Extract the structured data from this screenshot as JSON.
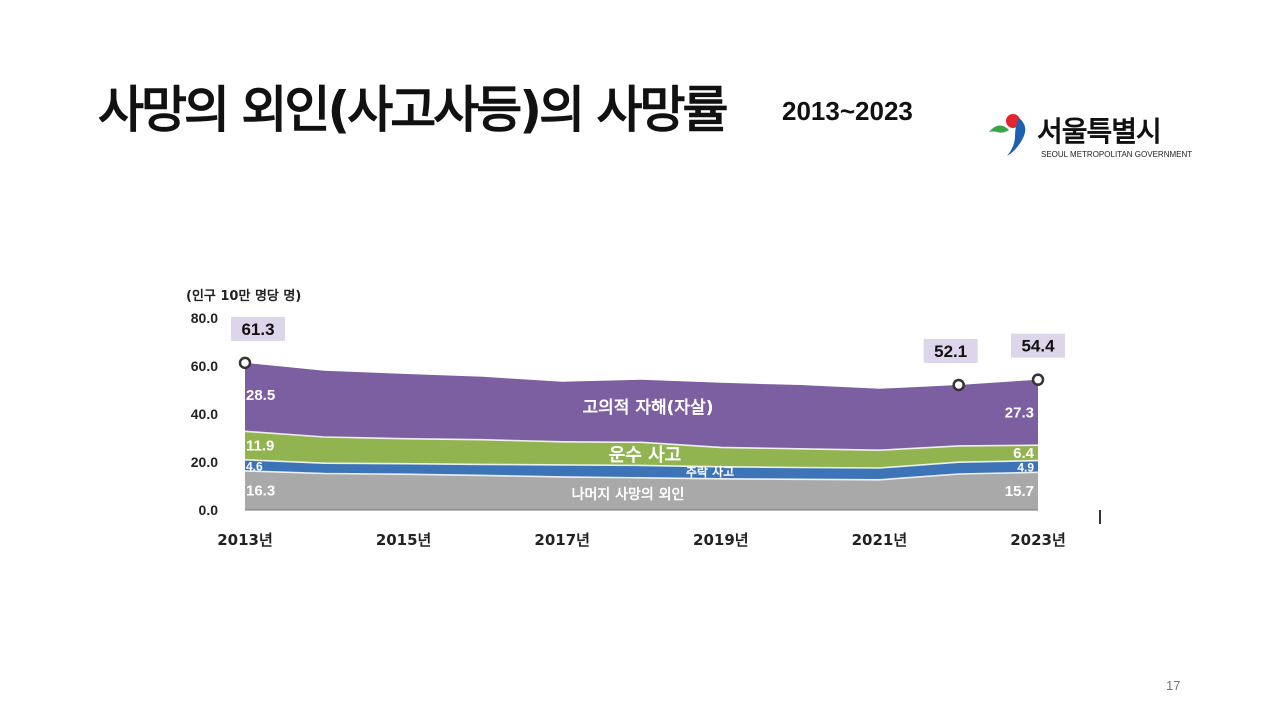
{
  "slide": {
    "title": "사망의 외인(사고사등)의 사망률",
    "subtitle": "2013~2023",
    "page_number": "17"
  },
  "logo": {
    "name": "서울특별시",
    "sub": "SEOUL METROPOLITAN GOVERNMENT"
  },
  "colors": {
    "self_harm": "#7b5fa0",
    "transport": "#92b450",
    "fall": "#3d74b8",
    "other": "#a9a9a9",
    "label_box": "#ddd5ea"
  },
  "chart_data": {
    "type": "area",
    "stacked": true,
    "unit_label": "(인구 10만 명당 명)",
    "ylim": [
      0,
      80
    ],
    "yticks": [
      "0.0",
      "20.0",
      "40.0",
      "60.0",
      "80.0"
    ],
    "x": [
      2013,
      2014,
      2015,
      2016,
      2017,
      2018,
      2019,
      2020,
      2021,
      2022,
      2023
    ],
    "xtick_labels": [
      "2013년",
      "2015년",
      "2017년",
      "2019년",
      "2021년",
      "2023년"
    ],
    "series": [
      {
        "name": "나머지 사망의 외인",
        "values": [
          16.3,
          15.2,
          14.9,
          14.4,
          13.8,
          13.4,
          13.0,
          12.8,
          12.6,
          15.0,
          15.7
        ]
      },
      {
        "name": "추락 사고",
        "values": [
          4.6,
          4.3,
          4.4,
          4.6,
          5.0,
          5.2,
          5.0,
          4.9,
          4.9,
          4.9,
          4.9
        ]
      },
      {
        "name": "운수 사고",
        "values": [
          11.9,
          10.9,
          10.4,
          10.3,
          9.6,
          9.6,
          8.1,
          7.8,
          7.4,
          6.8,
          6.4
        ]
      },
      {
        "name": "고의적 자해(자살)",
        "values": [
          28.5,
          27.6,
          27.0,
          26.2,
          25.0,
          26.1,
          26.9,
          26.6,
          25.6,
          25.4,
          27.3
        ]
      }
    ],
    "totals": {
      "2013": "61.3",
      "2022": "52.1",
      "2023": "54.4"
    },
    "value_labels": {
      "first": [
        "16.3",
        "4.6",
        "11.9",
        "28.5"
      ],
      "last": [
        "15.7",
        "4.9",
        "6.4",
        "27.3"
      ]
    }
  }
}
